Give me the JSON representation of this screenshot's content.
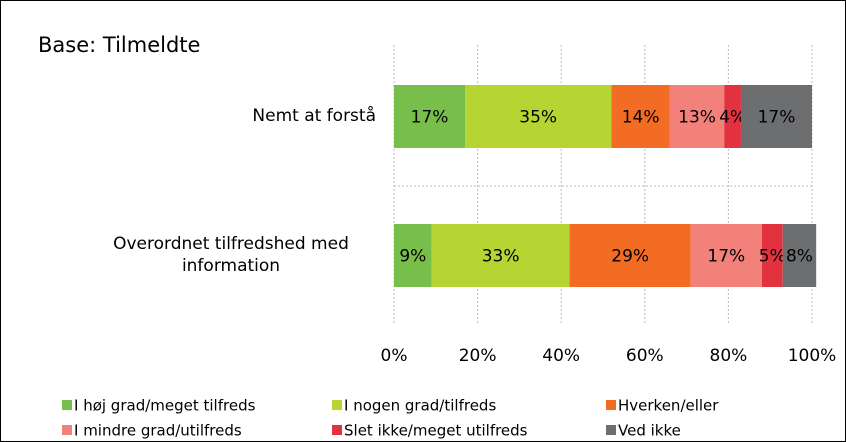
{
  "chart_data": {
    "type": "stacked-bar-horizontal",
    "title": "Base: Tilmeldte",
    "categories": [
      "Nemt at forstå",
      "Overordnet tilfredshed med information"
    ],
    "series": [
      {
        "name": "I høj grad/meget tilfreds",
        "color": "#77bf4a",
        "values": [
          17,
          9
        ],
        "value_labels": [
          "17%",
          "9%"
        ]
      },
      {
        "name": "I nogen grad/tilfreds",
        "color": "#b6d432",
        "values": [
          35,
          33
        ],
        "value_labels": [
          "35%",
          "33%"
        ]
      },
      {
        "name": "Hverken/eller",
        "color": "#f26c23",
        "values": [
          14,
          29
        ],
        "value_labels": [
          "14%",
          "29%"
        ]
      },
      {
        "name": "I mindre grad/utilfreds",
        "color": "#f2817c",
        "values": [
          13,
          17
        ],
        "value_labels": [
          "13%",
          "17%"
        ]
      },
      {
        "name": "Slet ikke/meget utilfreds",
        "color": "#e3323f",
        "values": [
          4,
          5
        ],
        "value_labels": [
          "4%",
          "5%"
        ]
      },
      {
        "name": "Ved ikke",
        "color": "#6d6e70",
        "values": [
          17,
          8
        ],
        "value_labels": [
          "17%",
          "8%"
        ]
      }
    ],
    "xlim": [
      0,
      100
    ],
    "xticks": [
      {
        "value": 0,
        "label": "0%"
      },
      {
        "value": 20,
        "label": "20%"
      },
      {
        "value": 40,
        "label": "40%"
      },
      {
        "value": 60,
        "label": "60%"
      },
      {
        "value": 80,
        "label": "80%"
      },
      {
        "value": 100,
        "label": "100%"
      }
    ],
    "grid": true,
    "legend": "bottom"
  }
}
